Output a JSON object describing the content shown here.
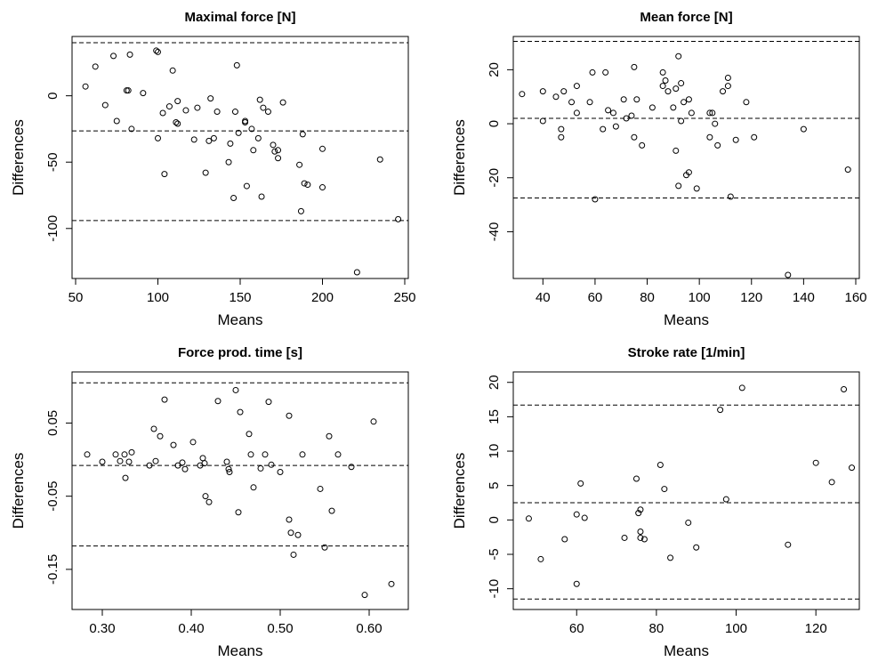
{
  "chart_data": [
    {
      "type": "scatter",
      "title": "Maximal force [N]",
      "xlabel": "Means",
      "ylabel": "Differences",
      "xlim": [
        50,
        250
      ],
      "ylim": [
        -135,
        42
      ],
      "x_ticks": [
        50,
        100,
        150,
        200,
        250
      ],
      "x_tick_labels": [
        "50",
        "100",
        "150",
        "200",
        "250"
      ],
      "y_ticks": [
        0,
        -50,
        -100
      ],
      "y_tick_labels": [
        "0",
        "-50",
        "-100"
      ],
      "hlines": [
        40,
        -26.5,
        -94
      ],
      "points": [
        [
          56,
          7
        ],
        [
          62,
          22
        ],
        [
          68,
          -7
        ],
        [
          73,
          30
        ],
        [
          75,
          -19
        ],
        [
          81,
          4
        ],
        [
          82,
          4
        ],
        [
          83,
          31
        ],
        [
          84,
          -25
        ],
        [
          91,
          2
        ],
        [
          99,
          34
        ],
        [
          100,
          33
        ],
        [
          100,
          -32
        ],
        [
          103,
          -13
        ],
        [
          104,
          -59
        ],
        [
          107,
          -8
        ],
        [
          109,
          19
        ],
        [
          111,
          -20
        ],
        [
          112,
          -4
        ],
        [
          112,
          -21
        ],
        [
          117,
          -11
        ],
        [
          122,
          -33
        ],
        [
          124,
          -9
        ],
        [
          129,
          -58
        ],
        [
          131,
          -34
        ],
        [
          132,
          -2
        ],
        [
          134,
          -32
        ],
        [
          136,
          -12
        ],
        [
          143,
          -50
        ],
        [
          144,
          -36
        ],
        [
          146,
          -77
        ],
        [
          147,
          -12
        ],
        [
          148,
          23
        ],
        [
          149,
          -28
        ],
        [
          153,
          -19
        ],
        [
          153,
          -20
        ],
        [
          154,
          -68
        ],
        [
          157,
          -25
        ],
        [
          158,
          -41
        ],
        [
          161,
          -32
        ],
        [
          162,
          -3
        ],
        [
          163,
          -76
        ],
        [
          164,
          -9
        ],
        [
          167,
          -12
        ],
        [
          170,
          -37
        ],
        [
          171,
          -42
        ],
        [
          173,
          -47
        ],
        [
          173,
          -41
        ],
        [
          176,
          -5
        ],
        [
          186,
          -52
        ],
        [
          187,
          -87
        ],
        [
          188,
          -29
        ],
        [
          189,
          -66
        ],
        [
          191,
          -67
        ],
        [
          200,
          -40
        ],
        [
          200,
          -69
        ],
        [
          221,
          -133
        ],
        [
          235,
          -48
        ],
        [
          246,
          -93
        ]
      ]
    },
    {
      "type": "scatter",
      "title": "Mean force [N]",
      "xlabel": "Means",
      "ylabel": "Differences",
      "xlim": [
        30,
        160
      ],
      "ylim": [
        -56,
        31
      ],
      "x_ticks": [
        40,
        60,
        80,
        100,
        120,
        140,
        160
      ],
      "x_tick_labels": [
        "40",
        "60",
        "80",
        "100",
        "120",
        "140",
        "160"
      ],
      "y_ticks": [
        20,
        0,
        -20,
        -40
      ],
      "y_tick_labels": [
        "20",
        "0",
        "-20",
        "-40"
      ],
      "hlines": [
        30.5,
        2,
        -27.5
      ],
      "points": [
        [
          32,
          11
        ],
        [
          40,
          12
        ],
        [
          40,
          1
        ],
        [
          45,
          10
        ],
        [
          47,
          -2
        ],
        [
          47,
          -5
        ],
        [
          48,
          12
        ],
        [
          51,
          8
        ],
        [
          53,
          14
        ],
        [
          53,
          4
        ],
        [
          58,
          8
        ],
        [
          59,
          19
        ],
        [
          60,
          -28
        ],
        [
          63,
          -2
        ],
        [
          64,
          19
        ],
        [
          65,
          5
        ],
        [
          67,
          4
        ],
        [
          68,
          -1
        ],
        [
          71,
          9
        ],
        [
          72,
          2
        ],
        [
          74,
          3
        ],
        [
          75,
          21
        ],
        [
          75,
          -5
        ],
        [
          76,
          9
        ],
        [
          78,
          -8
        ],
        [
          82,
          6
        ],
        [
          86,
          14
        ],
        [
          86,
          19
        ],
        [
          87,
          16
        ],
        [
          88,
          12
        ],
        [
          90,
          6
        ],
        [
          91,
          -10
        ],
        [
          91,
          13
        ],
        [
          92,
          25
        ],
        [
          92,
          -23
        ],
        [
          93,
          15
        ],
        [
          93,
          1
        ],
        [
          94,
          8
        ],
        [
          95,
          -19
        ],
        [
          96,
          9
        ],
        [
          96,
          -18
        ],
        [
          97,
          4
        ],
        [
          99,
          -24
        ],
        [
          104,
          -5
        ],
        [
          104,
          4
        ],
        [
          105,
          4
        ],
        [
          106,
          0
        ],
        [
          107,
          -8
        ],
        [
          109,
          12
        ],
        [
          111,
          17
        ],
        [
          111,
          14
        ],
        [
          112,
          -27
        ],
        [
          114,
          -6
        ],
        [
          118,
          8
        ],
        [
          121,
          -5
        ],
        [
          134,
          -56
        ],
        [
          140,
          -2
        ],
        [
          157,
          -17
        ]
      ]
    },
    {
      "type": "scatter",
      "title": "Force prod. time [s]",
      "xlabel": "Means",
      "ylabel": "Differences",
      "xlim": [
        0.27,
        0.64
      ],
      "ylim": [
        -0.2,
        0.115
      ],
      "x_ticks": [
        0.3,
        0.4,
        0.5,
        0.6
      ],
      "x_tick_labels": [
        "0.30",
        "0.40",
        "0.50",
        "0.60"
      ],
      "y_ticks": [
        0.05,
        -0.05,
        -0.15
      ],
      "y_tick_labels": [
        "0.05",
        "-0.05",
        "-0.15"
      ],
      "hlines": [
        0.105,
        -0.008,
        -0.118
      ],
      "points": [
        [
          0.283,
          0.007
        ],
        [
          0.3,
          -0.003
        ],
        [
          0.315,
          0.007
        ],
        [
          0.32,
          -0.002
        ],
        [
          0.325,
          0.007
        ],
        [
          0.326,
          -0.025
        ],
        [
          0.33,
          -0.003
        ],
        [
          0.333,
          0.01
        ],
        [
          0.353,
          -0.008
        ],
        [
          0.358,
          0.042
        ],
        [
          0.36,
          -0.002
        ],
        [
          0.365,
          0.032
        ],
        [
          0.37,
          0.082
        ],
        [
          0.38,
          0.02
        ],
        [
          0.385,
          -0.008
        ],
        [
          0.39,
          -0.004
        ],
        [
          0.393,
          -0.013
        ],
        [
          0.402,
          0.024
        ],
        [
          0.41,
          -0.008
        ],
        [
          0.413,
          0.002
        ],
        [
          0.415,
          -0.005
        ],
        [
          0.416,
          -0.05
        ],
        [
          0.42,
          -0.058
        ],
        [
          0.43,
          0.08
        ],
        [
          0.44,
          -0.003
        ],
        [
          0.442,
          -0.013
        ],
        [
          0.443,
          -0.017
        ],
        [
          0.45,
          0.095
        ],
        [
          0.453,
          -0.072
        ],
        [
          0.455,
          0.065
        ],
        [
          0.465,
          0.035
        ],
        [
          0.467,
          0.007
        ],
        [
          0.47,
          -0.038
        ],
        [
          0.478,
          -0.012
        ],
        [
          0.483,
          0.007
        ],
        [
          0.487,
          0.079
        ],
        [
          0.49,
          -0.007
        ],
        [
          0.5,
          -0.017
        ],
        [
          0.51,
          -0.082
        ],
        [
          0.512,
          -0.1
        ],
        [
          0.515,
          -0.13
        ],
        [
          0.52,
          -0.103
        ],
        [
          0.525,
          0.007
        ],
        [
          0.545,
          -0.04
        ],
        [
          0.55,
          -0.12
        ],
        [
          0.555,
          0.032
        ],
        [
          0.558,
          -0.07
        ],
        [
          0.565,
          0.007
        ],
        [
          0.58,
          -0.01
        ],
        [
          0.595,
          -0.185
        ],
        [
          0.605,
          0.052
        ],
        [
          0.625,
          -0.17
        ],
        [
          0.51,
          0.06
        ]
      ]
    },
    {
      "type": "scatter",
      "title": "Stroke rate [1/min]",
      "xlabel": "Means",
      "ylabel": "Differences",
      "xlim": [
        45,
        130
      ],
      "ylim": [
        -12.5,
        21
      ],
      "x_ticks": [
        60,
        80,
        100,
        120
      ],
      "x_tick_labels": [
        "60",
        "80",
        "100",
        "120"
      ],
      "y_ticks": [
        20,
        15,
        10,
        5,
        0,
        -5,
        -10
      ],
      "y_tick_labels": [
        "20",
        "15",
        "10",
        "5",
        "0",
        "-5",
        "-10"
      ],
      "hlines": [
        16.7,
        2.5,
        -11.5
      ],
      "points": [
        [
          48,
          0.2
        ],
        [
          51,
          -5.7
        ],
        [
          57,
          -2.8
        ],
        [
          60,
          0.8
        ],
        [
          60,
          -9.3
        ],
        [
          61,
          5.3
        ],
        [
          62,
          0.3
        ],
        [
          72,
          -2.6
        ],
        [
          75,
          6
        ],
        [
          75.5,
          1
        ],
        [
          76,
          1.5
        ],
        [
          76,
          -1.7
        ],
        [
          76,
          -2.6
        ],
        [
          77,
          -2.8
        ],
        [
          81,
          8
        ],
        [
          82,
          4.5
        ],
        [
          83.5,
          -5.5
        ],
        [
          88,
          -0.4
        ],
        [
          90,
          -4
        ],
        [
          96,
          16
        ],
        [
          97.5,
          3
        ],
        [
          101.5,
          19.2
        ],
        [
          113,
          -3.6
        ],
        [
          120,
          8.3
        ],
        [
          124,
          5.5
        ],
        [
          127,
          19
        ],
        [
          129,
          7.6
        ]
      ]
    }
  ]
}
